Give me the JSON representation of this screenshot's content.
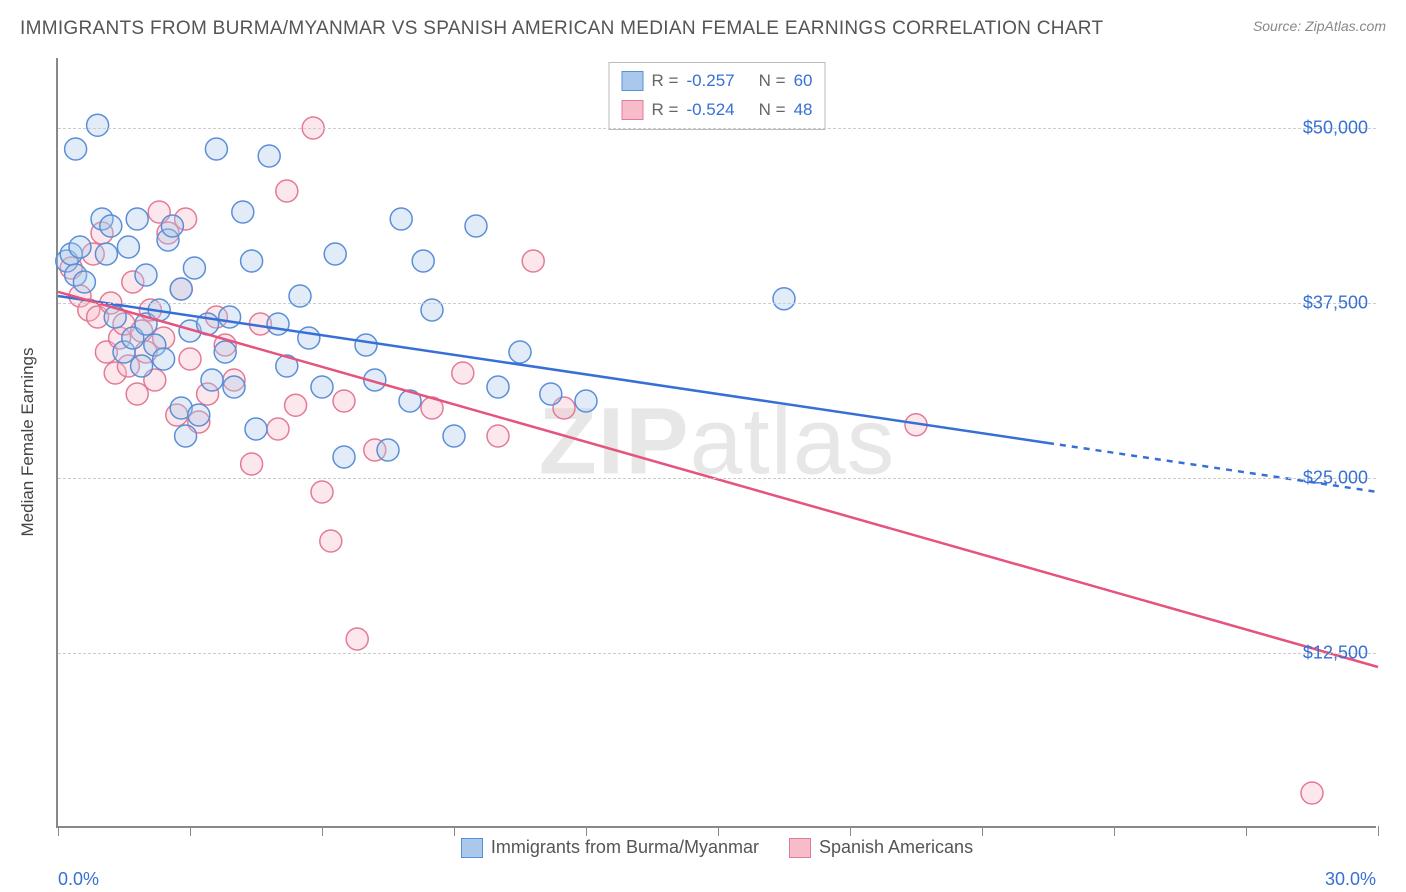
{
  "title": "IMMIGRANTS FROM BURMA/MYANMAR VS SPANISH AMERICAN MEDIAN FEMALE EARNINGS CORRELATION CHART",
  "source": "Source: ZipAtlas.com",
  "watermark": {
    "zip": "ZIP",
    "atlas": "atlas"
  },
  "y_axis_title": "Median Female Earnings",
  "chart": {
    "type": "scatter",
    "background_color": "#ffffff",
    "grid_color": "#cccccc",
    "axis_color": "#888888",
    "marker_radius": 11,
    "marker_fill_opacity": 0.35,
    "marker_stroke_width": 1.5,
    "line_width": 2.5,
    "dash_pattern": "6 6",
    "xlim": [
      0,
      30
    ],
    "ylim": [
      0,
      55000
    ],
    "x_ticks": [
      0,
      3,
      6,
      9,
      12,
      15,
      18,
      21,
      24,
      27,
      30
    ],
    "x_tick_labels": {
      "min": "0.0%",
      "max": "30.0%"
    },
    "y_ticks": [
      12500,
      25000,
      37500,
      50000
    ],
    "y_tick_labels": [
      "$12,500",
      "$25,000",
      "$37,500",
      "$50,000"
    ]
  },
  "series_a": {
    "name": "Immigrants from Burma/Myanmar",
    "color_fill": "#a9c8ec",
    "color_stroke": "#5a8fd8",
    "line_color": "#3670d6",
    "R_label": "R =",
    "R": "-0.257",
    "N_label": "N =",
    "N": "60",
    "trend_solid": {
      "x1": 0,
      "y1": 38000,
      "x2": 22.5,
      "y2": 27500
    },
    "trend_dashed": {
      "x1": 22.5,
      "y1": 27500,
      "x2": 30,
      "y2": 24000
    },
    "points": [
      [
        0.2,
        40500
      ],
      [
        0.3,
        41000
      ],
      [
        0.4,
        39500
      ],
      [
        0.5,
        41500
      ],
      [
        0.6,
        39000
      ],
      [
        0.9,
        50200
      ],
      [
        0.4,
        48500
      ],
      [
        1.0,
        43500
      ],
      [
        1.1,
        41000
      ],
      [
        1.2,
        43000
      ],
      [
        1.3,
        36500
      ],
      [
        1.5,
        34000
      ],
      [
        1.6,
        41500
      ],
      [
        1.7,
        35000
      ],
      [
        1.8,
        43500
      ],
      [
        2.0,
        36000
      ],
      [
        2.0,
        39500
      ],
      [
        2.2,
        34500
      ],
      [
        2.3,
        37000
      ],
      [
        2.4,
        33500
      ],
      [
        2.5,
        42000
      ],
      [
        2.6,
        43000
      ],
      [
        2.8,
        30000
      ],
      [
        2.8,
        38500
      ],
      [
        2.9,
        28000
      ],
      [
        3.0,
        35500
      ],
      [
        3.1,
        40000
      ],
      [
        3.2,
        29500
      ],
      [
        3.4,
        36000
      ],
      [
        3.5,
        32000
      ],
      [
        3.6,
        48500
      ],
      [
        3.8,
        34000
      ],
      [
        3.9,
        36500
      ],
      [
        4.0,
        31500
      ],
      [
        4.2,
        44000
      ],
      [
        4.4,
        40500
      ],
      [
        4.5,
        28500
      ],
      [
        4.8,
        48000
      ],
      [
        5.0,
        36000
      ],
      [
        5.2,
        33000
      ],
      [
        5.5,
        38000
      ],
      [
        5.7,
        35000
      ],
      [
        6.0,
        31500
      ],
      [
        6.3,
        41000
      ],
      [
        6.5,
        26500
      ],
      [
        7.0,
        34500
      ],
      [
        7.2,
        32000
      ],
      [
        7.8,
        43500
      ],
      [
        8.0,
        30500
      ],
      [
        8.3,
        40500
      ],
      [
        8.5,
        37000
      ],
      [
        9.0,
        28000
      ],
      [
        9.5,
        43000
      ],
      [
        10.0,
        31500
      ],
      [
        10.5,
        34000
      ],
      [
        11.2,
        31000
      ],
      [
        12.0,
        30500
      ],
      [
        16.5,
        37800
      ],
      [
        7.5,
        27000
      ],
      [
        1.9,
        33000
      ]
    ]
  },
  "series_b": {
    "name": "Spanish Americans",
    "color_fill": "#f6bcc9",
    "color_stroke": "#e47a95",
    "line_color": "#e6537d",
    "R_label": "R =",
    "R": "-0.524",
    "N_label": "N =",
    "N": "48",
    "trend_solid": {
      "x1": 0,
      "y1": 38300,
      "x2": 30,
      "y2": 11500
    },
    "points": [
      [
        0.3,
        40000
      ],
      [
        0.5,
        38000
      ],
      [
        0.7,
        37000
      ],
      [
        0.8,
        41000
      ],
      [
        0.9,
        36500
      ],
      [
        1.0,
        42500
      ],
      [
        1.1,
        34000
      ],
      [
        1.2,
        37500
      ],
      [
        1.3,
        32500
      ],
      [
        1.4,
        35000
      ],
      [
        1.5,
        36000
      ],
      [
        1.6,
        33000
      ],
      [
        1.7,
        39000
      ],
      [
        1.8,
        31000
      ],
      [
        1.9,
        35500
      ],
      [
        2.0,
        34000
      ],
      [
        2.1,
        37000
      ],
      [
        2.2,
        32000
      ],
      [
        2.3,
        44000
      ],
      [
        2.4,
        35000
      ],
      [
        2.5,
        42500
      ],
      [
        2.7,
        29500
      ],
      [
        2.8,
        38500
      ],
      [
        2.9,
        43500
      ],
      [
        3.0,
        33500
      ],
      [
        3.2,
        29000
      ],
      [
        3.4,
        31000
      ],
      [
        3.6,
        36500
      ],
      [
        3.8,
        34500
      ],
      [
        4.0,
        32000
      ],
      [
        4.4,
        26000
      ],
      [
        4.6,
        36000
      ],
      [
        5.0,
        28500
      ],
      [
        5.2,
        45500
      ],
      [
        5.4,
        30200
      ],
      [
        5.8,
        50000
      ],
      [
        6.0,
        24000
      ],
      [
        6.2,
        20500
      ],
      [
        6.5,
        30500
      ],
      [
        6.8,
        13500
      ],
      [
        7.2,
        27000
      ],
      [
        8.5,
        30000
      ],
      [
        9.2,
        32500
      ],
      [
        10.0,
        28000
      ],
      [
        10.8,
        40500
      ],
      [
        19.5,
        28800
      ],
      [
        28.5,
        2500
      ],
      [
        11.5,
        30000
      ]
    ]
  }
}
